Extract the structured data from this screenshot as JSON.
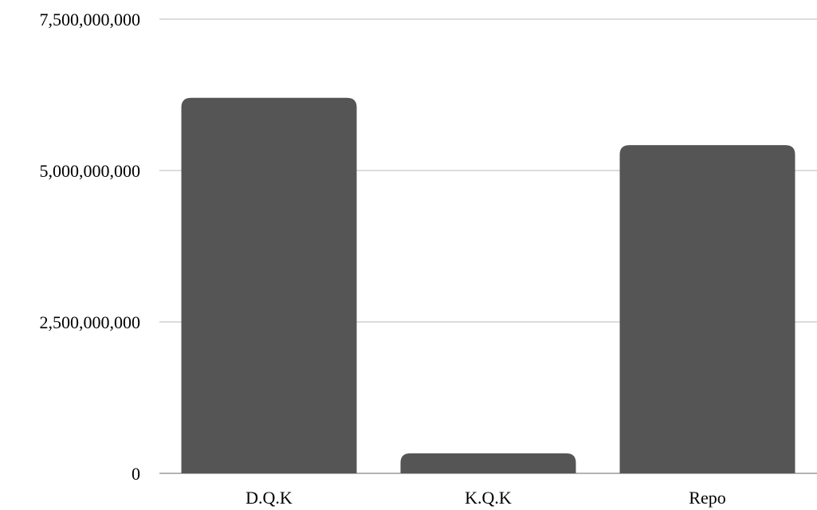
{
  "chart_data": {
    "type": "bar",
    "title": "",
    "xlabel": "",
    "ylabel": "",
    "categories": [
      "D.Q.K",
      "K.Q.K",
      "Repo"
    ],
    "values": [
      6200000000,
      330000000,
      5420000000
    ],
    "ylim": [
      0,
      7500000000
    ],
    "yticks": [
      0,
      2500000000,
      5000000000,
      7500000000
    ],
    "ytick_labels": [
      "0",
      "2,500,000,000",
      "5,000,000,000",
      "7,500,000,000"
    ],
    "grid": true,
    "legend": "none",
    "bar_color": "#555555",
    "grid_color": "#c8c8c8"
  }
}
